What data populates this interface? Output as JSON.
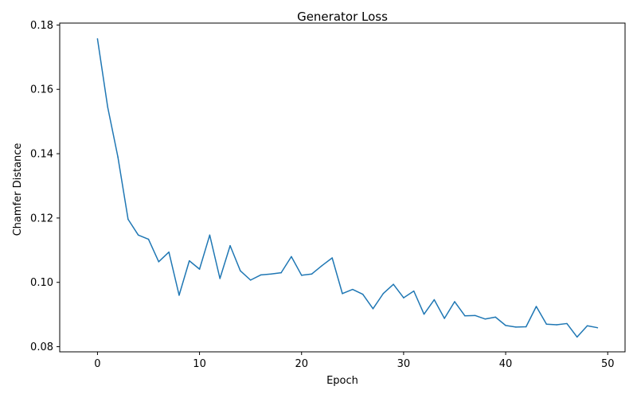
{
  "chart_data": {
    "type": "line",
    "title": "Generator Loss",
    "xlabel": "Epoch",
    "ylabel": "Chamfer Distance",
    "xlim": [
      -3.7,
      51.7
    ],
    "ylim": [
      0.0784,
      0.1806
    ],
    "xticks": [
      0,
      10,
      20,
      30,
      40,
      50
    ],
    "yticks": [
      0.08,
      0.1,
      0.12,
      0.14,
      0.16,
      0.18
    ],
    "ytick_labels": [
      "0.08",
      "0.10",
      "0.12",
      "0.14",
      "0.16",
      "0.18"
    ],
    "grid": false,
    "legend": "none",
    "series": [
      {
        "color": "#1f77b4",
        "x": [
          0,
          1,
          2,
          3,
          4,
          5,
          6,
          7,
          8,
          9,
          10,
          11,
          12,
          13,
          14,
          15,
          16,
          17,
          18,
          19,
          20,
          21,
          22,
          23,
          24,
          25,
          26,
          27,
          28,
          29,
          30,
          31,
          32,
          33,
          34,
          35,
          36,
          37,
          38,
          39,
          40,
          41,
          42,
          43,
          44,
          45,
          46,
          47,
          48,
          49
        ],
        "values": [
          0.1757,
          0.1545,
          0.139,
          0.1196,
          0.1147,
          0.1134,
          0.1064,
          0.1094,
          0.096,
          0.1067,
          0.1041,
          0.1147,
          0.1012,
          0.1114,
          0.1036,
          0.1007,
          0.1023,
          0.1026,
          0.103,
          0.108,
          0.1022,
          0.1026,
          0.1052,
          0.1076,
          0.0965,
          0.0978,
          0.0963,
          0.0918,
          0.0965,
          0.0994,
          0.0952,
          0.0973,
          0.0901,
          0.0946,
          0.0888,
          0.094,
          0.0896,
          0.0897,
          0.0886,
          0.0892,
          0.0866,
          0.0861,
          0.0862,
          0.0925,
          0.087,
          0.0868,
          0.0872,
          0.083,
          0.0865,
          0.0859
        ]
      }
    ]
  }
}
